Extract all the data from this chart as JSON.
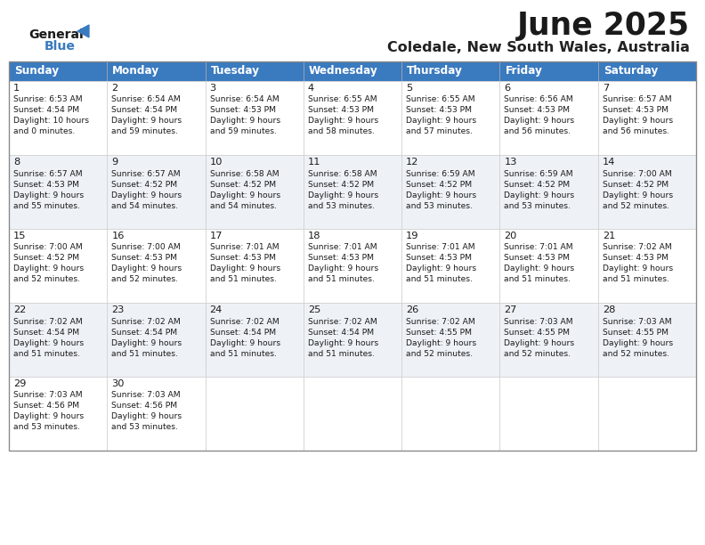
{
  "title": "June 2025",
  "subtitle": "Coledale, New South Wales, Australia",
  "header_color": "#3a7abf",
  "header_text_color": "#ffffff",
  "bg_color": "#ffffff",
  "row_even_color": "#ffffff",
  "row_odd_color": "#eef2f7",
  "border_color": "#aaaaaa",
  "cell_border_color": "#cccccc",
  "days_of_week": [
    "Sunday",
    "Monday",
    "Tuesday",
    "Wednesday",
    "Thursday",
    "Friday",
    "Saturday"
  ],
  "title_fontsize": 26,
  "subtitle_fontsize": 12,
  "header_fontsize": 9,
  "cell_day_fontsize": 8.5,
  "cell_text_fontsize": 6.8,
  "calendar": [
    [
      {
        "day": 1,
        "sunrise": "6:53 AM",
        "sunset": "4:54 PM",
        "daylight": "10 hours and 0 minutes."
      },
      {
        "day": 2,
        "sunrise": "6:54 AM",
        "sunset": "4:54 PM",
        "daylight": "9 hours and 59 minutes."
      },
      {
        "day": 3,
        "sunrise": "6:54 AM",
        "sunset": "4:53 PM",
        "daylight": "9 hours and 59 minutes."
      },
      {
        "day": 4,
        "sunrise": "6:55 AM",
        "sunset": "4:53 PM",
        "daylight": "9 hours and 58 minutes."
      },
      {
        "day": 5,
        "sunrise": "6:55 AM",
        "sunset": "4:53 PM",
        "daylight": "9 hours and 57 minutes."
      },
      {
        "day": 6,
        "sunrise": "6:56 AM",
        "sunset": "4:53 PM",
        "daylight": "9 hours and 56 minutes."
      },
      {
        "day": 7,
        "sunrise": "6:57 AM",
        "sunset": "4:53 PM",
        "daylight": "9 hours and 56 minutes."
      }
    ],
    [
      {
        "day": 8,
        "sunrise": "6:57 AM",
        "sunset": "4:53 PM",
        "daylight": "9 hours and 55 minutes."
      },
      {
        "day": 9,
        "sunrise": "6:57 AM",
        "sunset": "4:52 PM",
        "daylight": "9 hours and 54 minutes."
      },
      {
        "day": 10,
        "sunrise": "6:58 AM",
        "sunset": "4:52 PM",
        "daylight": "9 hours and 54 minutes."
      },
      {
        "day": 11,
        "sunrise": "6:58 AM",
        "sunset": "4:52 PM",
        "daylight": "9 hours and 53 minutes."
      },
      {
        "day": 12,
        "sunrise": "6:59 AM",
        "sunset": "4:52 PM",
        "daylight": "9 hours and 53 minutes."
      },
      {
        "day": 13,
        "sunrise": "6:59 AM",
        "sunset": "4:52 PM",
        "daylight": "9 hours and 53 minutes."
      },
      {
        "day": 14,
        "sunrise": "7:00 AM",
        "sunset": "4:52 PM",
        "daylight": "9 hours and 52 minutes."
      }
    ],
    [
      {
        "day": 15,
        "sunrise": "7:00 AM",
        "sunset": "4:52 PM",
        "daylight": "9 hours and 52 minutes."
      },
      {
        "day": 16,
        "sunrise": "7:00 AM",
        "sunset": "4:53 PM",
        "daylight": "9 hours and 52 minutes."
      },
      {
        "day": 17,
        "sunrise": "7:01 AM",
        "sunset": "4:53 PM",
        "daylight": "9 hours and 51 minutes."
      },
      {
        "day": 18,
        "sunrise": "7:01 AM",
        "sunset": "4:53 PM",
        "daylight": "9 hours and 51 minutes."
      },
      {
        "day": 19,
        "sunrise": "7:01 AM",
        "sunset": "4:53 PM",
        "daylight": "9 hours and 51 minutes."
      },
      {
        "day": 20,
        "sunrise": "7:01 AM",
        "sunset": "4:53 PM",
        "daylight": "9 hours and 51 minutes."
      },
      {
        "day": 21,
        "sunrise": "7:02 AM",
        "sunset": "4:53 PM",
        "daylight": "9 hours and 51 minutes."
      }
    ],
    [
      {
        "day": 22,
        "sunrise": "7:02 AM",
        "sunset": "4:54 PM",
        "daylight": "9 hours and 51 minutes."
      },
      {
        "day": 23,
        "sunrise": "7:02 AM",
        "sunset": "4:54 PM",
        "daylight": "9 hours and 51 minutes."
      },
      {
        "day": 24,
        "sunrise": "7:02 AM",
        "sunset": "4:54 PM",
        "daylight": "9 hours and 51 minutes."
      },
      {
        "day": 25,
        "sunrise": "7:02 AM",
        "sunset": "4:54 PM",
        "daylight": "9 hours and 51 minutes."
      },
      {
        "day": 26,
        "sunrise": "7:02 AM",
        "sunset": "4:55 PM",
        "daylight": "9 hours and 52 minutes."
      },
      {
        "day": 27,
        "sunrise": "7:03 AM",
        "sunset": "4:55 PM",
        "daylight": "9 hours and 52 minutes."
      },
      {
        "day": 28,
        "sunrise": "7:03 AM",
        "sunset": "4:55 PM",
        "daylight": "9 hours and 52 minutes."
      }
    ],
    [
      {
        "day": 29,
        "sunrise": "7:03 AM",
        "sunset": "4:56 PM",
        "daylight": "9 hours and 53 minutes."
      },
      {
        "day": 30,
        "sunrise": "7:03 AM",
        "sunset": "4:56 PM",
        "daylight": "9 hours and 53 minutes."
      },
      null,
      null,
      null,
      null,
      null
    ]
  ]
}
